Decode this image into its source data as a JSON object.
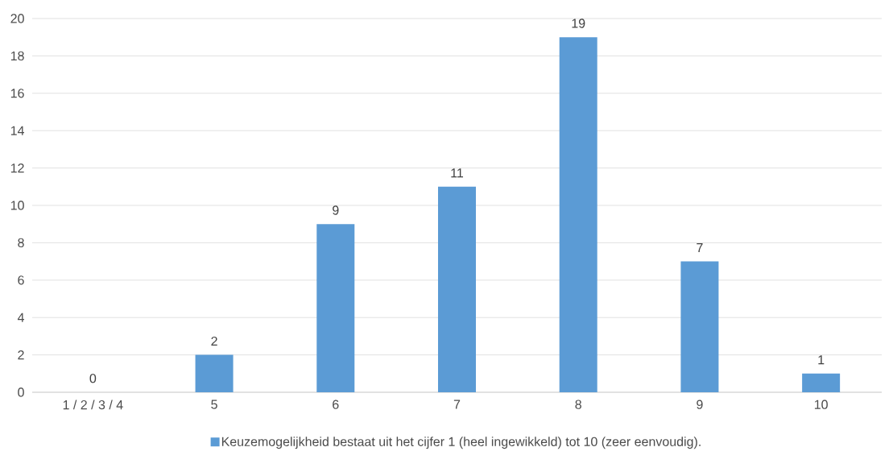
{
  "chart_data": {
    "type": "bar",
    "categories": [
      "1 / 2 / 3 / 4",
      "5",
      "6",
      "7",
      "8",
      "9",
      "10"
    ],
    "series": [
      {
        "name": "Keuzemogelijkheid bestaat uit het cijfer 1 (heel ingewikkeld) tot 10 (zeer eenvoudig).",
        "color": "#5b9bd5",
        "values": [
          0,
          2,
          9,
          11,
          19,
          7,
          1
        ]
      }
    ],
    "ylim": [
      0,
      20
    ],
    "yticks": [
      0,
      2,
      4,
      6,
      8,
      10,
      12,
      14,
      16,
      18,
      20
    ],
    "grid": "y",
    "data_labels": true,
    "legend": "bottom"
  }
}
